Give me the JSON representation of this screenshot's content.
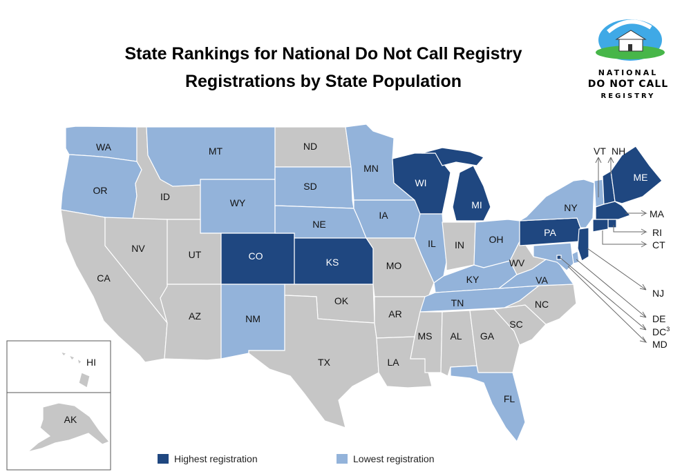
{
  "title_line1": "State Rankings for National Do Not Call Registry",
  "title_line2": "Registrations by State Population",
  "logo": {
    "line1": "NATIONAL",
    "line2": "DO NOT CALL",
    "line3": "REGISTRY"
  },
  "colors": {
    "highest": "#1f4780",
    "lowest": "#93b3da",
    "other": "#c6c6c6"
  },
  "legend": {
    "highest_label": "Highest registration",
    "lowest_label": "Lowest registration"
  },
  "states": [
    {
      "abbr": "WA",
      "rank": "lowest"
    },
    {
      "abbr": "OR",
      "rank": "lowest"
    },
    {
      "abbr": "CA",
      "rank": "other"
    },
    {
      "abbr": "ID",
      "rank": "other"
    },
    {
      "abbr": "NV",
      "rank": "other"
    },
    {
      "abbr": "MT",
      "rank": "lowest"
    },
    {
      "abbr": "WY",
      "rank": "lowest"
    },
    {
      "abbr": "UT",
      "rank": "other"
    },
    {
      "abbr": "AZ",
      "rank": "other"
    },
    {
      "abbr": "CO",
      "rank": "highest"
    },
    {
      "abbr": "NM",
      "rank": "lowest"
    },
    {
      "abbr": "ND",
      "rank": "other"
    },
    {
      "abbr": "SD",
      "rank": "lowest"
    },
    {
      "abbr": "NE",
      "rank": "lowest"
    },
    {
      "abbr": "KS",
      "rank": "highest"
    },
    {
      "abbr": "OK",
      "rank": "other"
    },
    {
      "abbr": "TX",
      "rank": "other"
    },
    {
      "abbr": "MN",
      "rank": "lowest"
    },
    {
      "abbr": "IA",
      "rank": "lowest"
    },
    {
      "abbr": "MO",
      "rank": "other"
    },
    {
      "abbr": "AR",
      "rank": "other"
    },
    {
      "abbr": "LA",
      "rank": "other"
    },
    {
      "abbr": "WI",
      "rank": "highest"
    },
    {
      "abbr": "IL",
      "rank": "lowest"
    },
    {
      "abbr": "MI",
      "rank": "highest"
    },
    {
      "abbr": "IN",
      "rank": "other"
    },
    {
      "abbr": "OH",
      "rank": "lowest"
    },
    {
      "abbr": "KY",
      "rank": "lowest"
    },
    {
      "abbr": "TN",
      "rank": "lowest"
    },
    {
      "abbr": "MS",
      "rank": "other"
    },
    {
      "abbr": "AL",
      "rank": "other"
    },
    {
      "abbr": "GA",
      "rank": "other"
    },
    {
      "abbr": "FL",
      "rank": "lowest"
    },
    {
      "abbr": "SC",
      "rank": "other"
    },
    {
      "abbr": "NC",
      "rank": "other"
    },
    {
      "abbr": "VA",
      "rank": "lowest"
    },
    {
      "abbr": "WV",
      "rank": "other"
    },
    {
      "abbr": "PA",
      "rank": "highest"
    },
    {
      "abbr": "NY",
      "rank": "lowest"
    },
    {
      "abbr": "VT",
      "rank": "lowest"
    },
    {
      "abbr": "NH",
      "rank": "highest"
    },
    {
      "abbr": "ME",
      "rank": "highest"
    },
    {
      "abbr": "MA",
      "rank": "highest"
    },
    {
      "abbr": "RI",
      "rank": "highest"
    },
    {
      "abbr": "CT",
      "rank": "highest"
    },
    {
      "abbr": "NJ",
      "rank": "highest"
    },
    {
      "abbr": "DE",
      "rank": "lowest"
    },
    {
      "abbr": "MD",
      "rank": "lowest"
    },
    {
      "abbr": "DC",
      "rank": "highest"
    },
    {
      "abbr": "HI",
      "rank": "other"
    },
    {
      "abbr": "AK",
      "rank": "other"
    }
  ],
  "labels": {
    "WA": "WA",
    "OR": "OR",
    "CA": "CA",
    "ID": "ID",
    "NV": "NV",
    "MT": "MT",
    "WY": "WY",
    "UT": "UT",
    "AZ": "AZ",
    "CO": "CO",
    "NM": "NM",
    "ND": "ND",
    "SD": "SD",
    "NE": "NE",
    "KS": "KS",
    "OK": "OK",
    "TX": "TX",
    "MN": "MN",
    "IA": "IA",
    "MO": "MO",
    "AR": "AR",
    "LA": "LA",
    "WI": "WI",
    "IL": "IL",
    "MI": "MI",
    "IN": "IN",
    "OH": "OH",
    "KY": "KY",
    "TN": "TN",
    "MS": "MS",
    "AL": "AL",
    "GA": "GA",
    "FL": "FL",
    "SC": "SC",
    "NC": "NC",
    "VA": "VA",
    "WV": "WV",
    "PA": "PA",
    "NY": "NY",
    "ME": "ME",
    "HI": "HI",
    "AK": "AK",
    "VT": "VT",
    "NH": "NH",
    "MA": "MA",
    "RI": "RI",
    "CT": "CT",
    "NJ": "NJ",
    "DE": "DE",
    "DC": "DC",
    "DC_sup": "3",
    "MD": "MD"
  }
}
